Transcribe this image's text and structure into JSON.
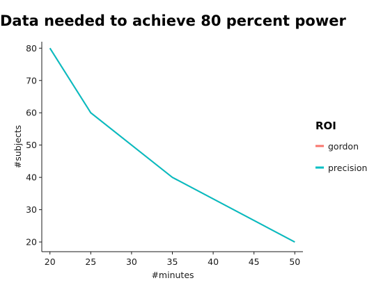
{
  "chart_data": {
    "type": "line",
    "title": "Data needed to achieve 80 percent power",
    "xlabel": "#minutes",
    "ylabel": "#subjects",
    "xlim": [
      19,
      51
    ],
    "ylim": [
      17,
      82
    ],
    "xticks": [
      20,
      25,
      30,
      35,
      40,
      45,
      50
    ],
    "yticks": [
      20,
      30,
      40,
      50,
      60,
      70,
      80
    ],
    "grid": false,
    "legend": {
      "title": "ROI",
      "placement": "right",
      "entries": [
        {
          "label": "gordon",
          "color": "#f8766d"
        },
        {
          "label": "precision",
          "color": "#00bfc4"
        }
      ]
    },
    "series": [
      {
        "name": "gordon",
        "color": "#f8766d",
        "x": [
          20,
          25,
          35,
          50
        ],
        "y": [
          80,
          60,
          40,
          20
        ]
      },
      {
        "name": "precision",
        "color": "#00bfc4",
        "x": [
          20,
          25,
          35,
          50
        ],
        "y": [
          80,
          60,
          40,
          20
        ]
      }
    ]
  }
}
